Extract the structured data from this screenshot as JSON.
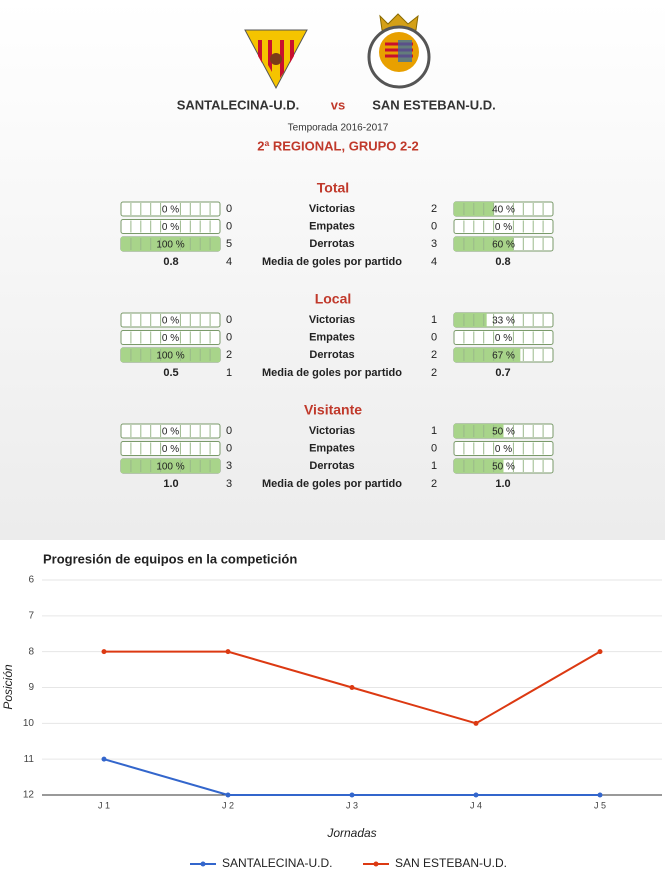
{
  "header": {
    "home": "SANTALECINA-U.D.",
    "vs": "vs",
    "away": "SAN ESTEBAN-U.D.",
    "season": "Temporada 2016-2017",
    "league": "2ª REGIONAL, GRUPO 2-2"
  },
  "sections": [
    {
      "title": "Total",
      "rows": [
        {
          "label": "Victorias",
          "home": {
            "pct": 0,
            "pct_label": "0 %",
            "count": 0
          },
          "away": {
            "pct": 40,
            "pct_label": "40 %",
            "count": 2
          }
        },
        {
          "label": "Empates",
          "home": {
            "pct": 0,
            "pct_label": "0 %",
            "count": 0
          },
          "away": {
            "pct": 0,
            "pct_label": "0 %",
            "count": 0
          }
        },
        {
          "label": "Derrotas",
          "home": {
            "pct": 100,
            "pct_label": "100 %",
            "count": 5
          },
          "away": {
            "pct": 60,
            "pct_label": "60 %",
            "count": 3
          }
        }
      ],
      "goals": {
        "label": "Media de goles por partido",
        "home_avg": "0.8",
        "home_goals": 4,
        "away_goals": 4,
        "away_avg": "0.8"
      }
    },
    {
      "title": "Local",
      "rows": [
        {
          "label": "Victorias",
          "home": {
            "pct": 0,
            "pct_label": "0 %",
            "count": 0
          },
          "away": {
            "pct": 33,
            "pct_label": "33 %",
            "count": 1
          }
        },
        {
          "label": "Empates",
          "home": {
            "pct": 0,
            "pct_label": "0 %",
            "count": 0
          },
          "away": {
            "pct": 0,
            "pct_label": "0 %",
            "count": 0
          }
        },
        {
          "label": "Derrotas",
          "home": {
            "pct": 100,
            "pct_label": "100 %",
            "count": 2
          },
          "away": {
            "pct": 67,
            "pct_label": "67 %",
            "count": 2
          }
        }
      ],
      "goals": {
        "label": "Media de goles por partido",
        "home_avg": "0.5",
        "home_goals": 1,
        "away_goals": 2,
        "away_avg": "0.7"
      }
    },
    {
      "title": "Visitante",
      "rows": [
        {
          "label": "Victorias",
          "home": {
            "pct": 0,
            "pct_label": "0 %",
            "count": 0
          },
          "away": {
            "pct": 50,
            "pct_label": "50 %",
            "count": 1
          }
        },
        {
          "label": "Empates",
          "home": {
            "pct": 0,
            "pct_label": "0 %",
            "count": 0
          },
          "away": {
            "pct": 0,
            "pct_label": "0 %",
            "count": 0
          }
        },
        {
          "label": "Derrotas",
          "home": {
            "pct": 100,
            "pct_label": "100 %",
            "count": 3
          },
          "away": {
            "pct": 50,
            "pct_label": "50 %",
            "count": 1
          }
        }
      ],
      "goals": {
        "label": "Media de goles por partido",
        "home_avg": "1.0",
        "home_goals": 3,
        "away_goals": 2,
        "away_avg": "1.0"
      }
    }
  ],
  "chart_data": {
    "type": "line",
    "title": "Progresión de equipos en la competición",
    "xlabel": "Jornadas",
    "ylabel": "Posición",
    "categories": [
      "J 1",
      "J 2",
      "J 3",
      "J 4",
      "J 5"
    ],
    "series": [
      {
        "name": "SANTALECINA-U.D.",
        "color": "#3366cc",
        "values": [
          11,
          12,
          12,
          12,
          12
        ]
      },
      {
        "name": "SAN ESTEBAN-U.D.",
        "color": "#dc3912",
        "values": [
          8,
          8,
          9,
          10,
          8
        ]
      }
    ],
    "ylim": [
      6,
      12
    ],
    "y_reversed": true,
    "yticks": [
      6,
      7,
      8,
      9,
      10,
      11,
      12
    ],
    "grid": true
  }
}
